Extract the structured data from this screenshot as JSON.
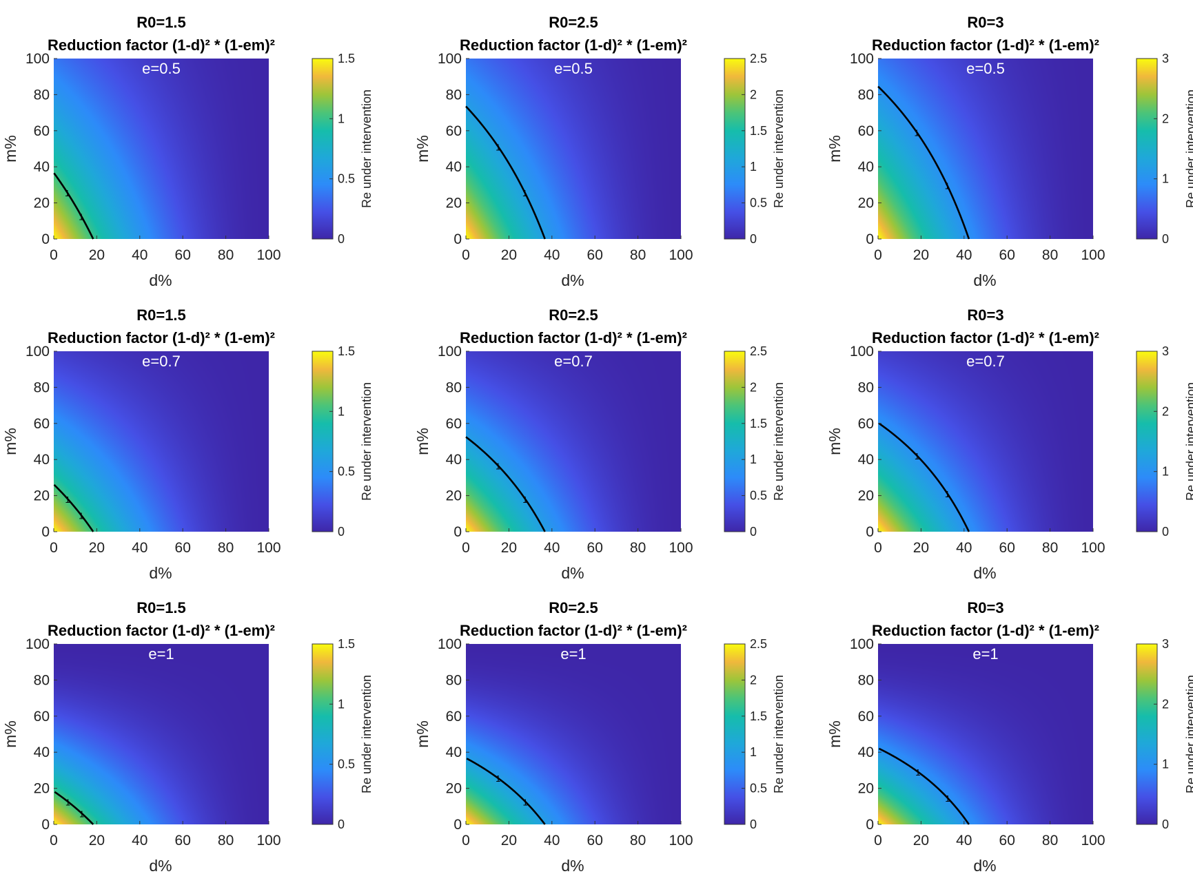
{
  "chart_data": [
    {
      "type": "heatmap",
      "title": "R0=1.5",
      "subtitle": "Reduction factor (1-d)² * (1-em)²",
      "annotation": "e=0.5",
      "R0": 1.5,
      "e": 0.5,
      "xlabel": "d%",
      "ylabel": "m%",
      "xlim": [
        0,
        100
      ],
      "ylim": [
        0,
        100
      ],
      "xticks": [
        "0",
        "20",
        "40",
        "60",
        "80",
        "100"
      ],
      "yticks": [
        "0",
        "20",
        "40",
        "60",
        "80",
        "100"
      ],
      "colorbar": {
        "label": "Re under intervention",
        "range": [
          0,
          1.5
        ],
        "ticks": [
          "0",
          "0.5",
          "1",
          "1.5"
        ]
      },
      "contour_level": "1"
    },
    {
      "type": "heatmap",
      "title": "R0=2.5",
      "subtitle": "Reduction factor (1-d)² * (1-em)²",
      "annotation": "e=0.5",
      "R0": 2.5,
      "e": 0.5,
      "xlabel": "d%",
      "ylabel": "m%",
      "xlim": [
        0,
        100
      ],
      "ylim": [
        0,
        100
      ],
      "xticks": [
        "0",
        "20",
        "40",
        "60",
        "80",
        "100"
      ],
      "yticks": [
        "0",
        "20",
        "40",
        "60",
        "80",
        "100"
      ],
      "colorbar": {
        "label": "Re under intervention",
        "range": [
          0,
          2.5
        ],
        "ticks": [
          "0",
          "0.5",
          "1",
          "1.5",
          "2",
          "2.5"
        ]
      },
      "contour_level": "1"
    },
    {
      "type": "heatmap",
      "title": "R0=3",
      "subtitle": "Reduction factor (1-d)² * (1-em)²",
      "annotation": "e=0.5",
      "R0": 3,
      "e": 0.5,
      "xlabel": "d%",
      "ylabel": "m%",
      "xlim": [
        0,
        100
      ],
      "ylim": [
        0,
        100
      ],
      "xticks": [
        "0",
        "20",
        "40",
        "60",
        "80",
        "100"
      ],
      "yticks": [
        "0",
        "20",
        "40",
        "60",
        "80",
        "100"
      ],
      "colorbar": {
        "label": "Re under intervention",
        "range": [
          0,
          3
        ],
        "ticks": [
          "0",
          "1",
          "2",
          "3"
        ]
      },
      "contour_level": "1"
    },
    {
      "type": "heatmap",
      "title": "R0=1.5",
      "subtitle": "Reduction factor (1-d)² * (1-em)²",
      "annotation": "e=0.7",
      "R0": 1.5,
      "e": 0.7,
      "xlabel": "d%",
      "ylabel": "m%",
      "xlim": [
        0,
        100
      ],
      "ylim": [
        0,
        100
      ],
      "xticks": [
        "0",
        "20",
        "40",
        "60",
        "80",
        "100"
      ],
      "yticks": [
        "0",
        "20",
        "40",
        "60",
        "80",
        "100"
      ],
      "colorbar": {
        "label": "Re under intervention",
        "range": [
          0,
          1.5
        ],
        "ticks": [
          "0",
          "0.5",
          "1",
          "1.5"
        ]
      },
      "contour_level": "1"
    },
    {
      "type": "heatmap",
      "title": "R0=2.5",
      "subtitle": "Reduction factor (1-d)² * (1-em)²",
      "annotation": "e=0.7",
      "R0": 2.5,
      "e": 0.7,
      "xlabel": "d%",
      "ylabel": "m%",
      "xlim": [
        0,
        100
      ],
      "ylim": [
        0,
        100
      ],
      "xticks": [
        "0",
        "20",
        "40",
        "60",
        "80",
        "100"
      ],
      "yticks": [
        "0",
        "20",
        "40",
        "60",
        "80",
        "100"
      ],
      "colorbar": {
        "label": "Re under intervention",
        "range": [
          0,
          2.5
        ],
        "ticks": [
          "0",
          "0.5",
          "1",
          "1.5",
          "2",
          "2.5"
        ]
      },
      "contour_level": "1"
    },
    {
      "type": "heatmap",
      "title": "R0=3",
      "subtitle": "Reduction factor (1-d)² * (1-em)²",
      "annotation": "e=0.7",
      "R0": 3,
      "e": 0.7,
      "xlabel": "d%",
      "ylabel": "m%",
      "xlim": [
        0,
        100
      ],
      "ylim": [
        0,
        100
      ],
      "xticks": [
        "0",
        "20",
        "40",
        "60",
        "80",
        "100"
      ],
      "yticks": [
        "0",
        "20",
        "40",
        "60",
        "80",
        "100"
      ],
      "colorbar": {
        "label": "Re under intervention",
        "range": [
          0,
          3
        ],
        "ticks": [
          "0",
          "1",
          "2",
          "3"
        ]
      },
      "contour_level": "1"
    },
    {
      "type": "heatmap",
      "title": "R0=1.5",
      "subtitle": "Reduction factor (1-d)² * (1-em)²",
      "annotation": "e=1",
      "R0": 1.5,
      "e": 1,
      "xlabel": "d%",
      "ylabel": "m%",
      "xlim": [
        0,
        100
      ],
      "ylim": [
        0,
        100
      ],
      "xticks": [
        "0",
        "20",
        "40",
        "60",
        "80",
        "100"
      ],
      "yticks": [
        "0",
        "20",
        "40",
        "60",
        "80",
        "100"
      ],
      "colorbar": {
        "label": "Re under intervention",
        "range": [
          0,
          1.5
        ],
        "ticks": [
          "0",
          "0.5",
          "1",
          "1.5"
        ]
      },
      "contour_level": "1"
    },
    {
      "type": "heatmap",
      "title": "R0=2.5",
      "subtitle": "Reduction factor (1-d)² * (1-em)²",
      "annotation": "e=1",
      "R0": 2.5,
      "e": 1,
      "xlabel": "d%",
      "ylabel": "m%",
      "xlim": [
        0,
        100
      ],
      "ylim": [
        0,
        100
      ],
      "xticks": [
        "0",
        "20",
        "40",
        "60",
        "80",
        "100"
      ],
      "yticks": [
        "0",
        "20",
        "40",
        "60",
        "80",
        "100"
      ],
      "colorbar": {
        "label": "Re under intervention",
        "range": [
          0,
          2.5
        ],
        "ticks": [
          "0",
          "0.5",
          "1",
          "1.5",
          "2",
          "2.5"
        ]
      },
      "contour_level": "1"
    },
    {
      "type": "heatmap",
      "title": "R0=3",
      "subtitle": "Reduction factor (1-d)² * (1-em)²",
      "annotation": "e=1",
      "R0": 3,
      "e": 1,
      "xlabel": "d%",
      "ylabel": "m%",
      "xlim": [
        0,
        100
      ],
      "ylim": [
        0,
        100
      ],
      "xticks": [
        "0",
        "20",
        "40",
        "60",
        "80",
        "100"
      ],
      "yticks": [
        "0",
        "20",
        "40",
        "60",
        "80",
        "100"
      ],
      "colorbar": {
        "label": "Re under intervention",
        "range": [
          0,
          3
        ],
        "ticks": [
          "0",
          "1",
          "2",
          "3"
        ]
      },
      "contour_level": "1"
    }
  ]
}
